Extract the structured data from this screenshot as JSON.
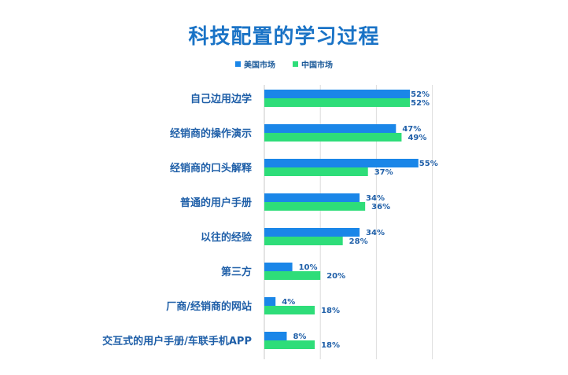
{
  "chart_data": {
    "type": "bar",
    "orientation": "horizontal",
    "title": "科技配置的学习过程",
    "categories": [
      "自己边用边学",
      "经销商的操作演示",
      "经销商的口头解释",
      "普通的用户手册",
      "以往的经验",
      "第三方",
      "厂商/经销商的网站",
      "交互式的用户手册/车联手机APP"
    ],
    "series": [
      {
        "name": "美国市场",
        "color": "#1a86e8",
        "values": [
          52,
          47,
          55,
          34,
          34,
          10,
          4,
          8
        ]
      },
      {
        "name": "中国市场",
        "color": "#2edd79",
        "values": [
          52,
          49,
          37,
          36,
          28,
          20,
          18,
          18
        ]
      }
    ],
    "value_suffix": "%",
    "xlim": [
      0,
      60
    ],
    "grid": true,
    "legend_position": "top-center"
  }
}
